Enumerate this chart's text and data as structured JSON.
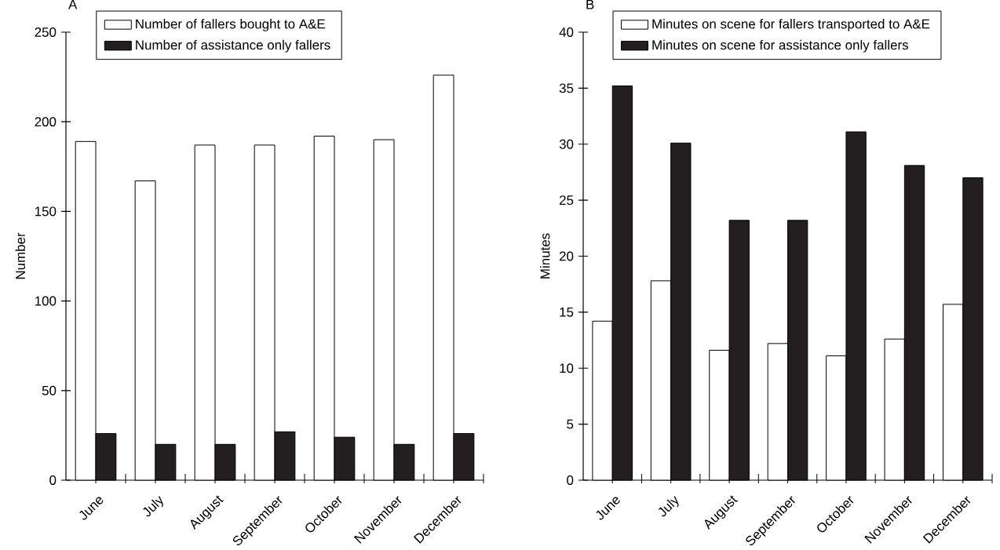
{
  "chart_data": [
    {
      "type": "bar",
      "title": "A",
      "ylabel": "Number",
      "categories": [
        "June",
        "July",
        "August",
        "September",
        "October",
        "November",
        "December"
      ],
      "series": [
        {
          "name": "Number of fallers bought to A&E",
          "color": "#ffffff",
          "values": [
            189,
            167,
            187,
            187,
            192,
            190,
            226
          ]
        },
        {
          "name": "Number of assistance only fallers",
          "color": "#231f20",
          "values": [
            26,
            20,
            20,
            27,
            24,
            20,
            26
          ]
        }
      ],
      "ylim": [
        0,
        250
      ],
      "yticks": [
        0,
        50,
        100,
        150,
        200,
        250
      ],
      "legend": "top left"
    },
    {
      "type": "bar",
      "title": "B",
      "ylabel": "Minutes",
      "categories": [
        "June",
        "July",
        "August",
        "September",
        "October",
        "November",
        "December"
      ],
      "series": [
        {
          "name": "Minutes on scene for fallers transported to A&E",
          "color": "#ffffff",
          "values": [
            14.2,
            17.8,
            11.6,
            12.2,
            11.1,
            12.6,
            15.7
          ]
        },
        {
          "name": "Minutes on scene for assistance only fallers",
          "color": "#231f20",
          "values": [
            35.2,
            30.1,
            23.2,
            23.2,
            31.1,
            28.1,
            27.0
          ]
        }
      ],
      "ylim": [
        0,
        40
      ],
      "yticks": [
        0,
        5,
        10,
        15,
        20,
        25,
        30,
        35,
        40
      ],
      "legend": "top left"
    }
  ]
}
